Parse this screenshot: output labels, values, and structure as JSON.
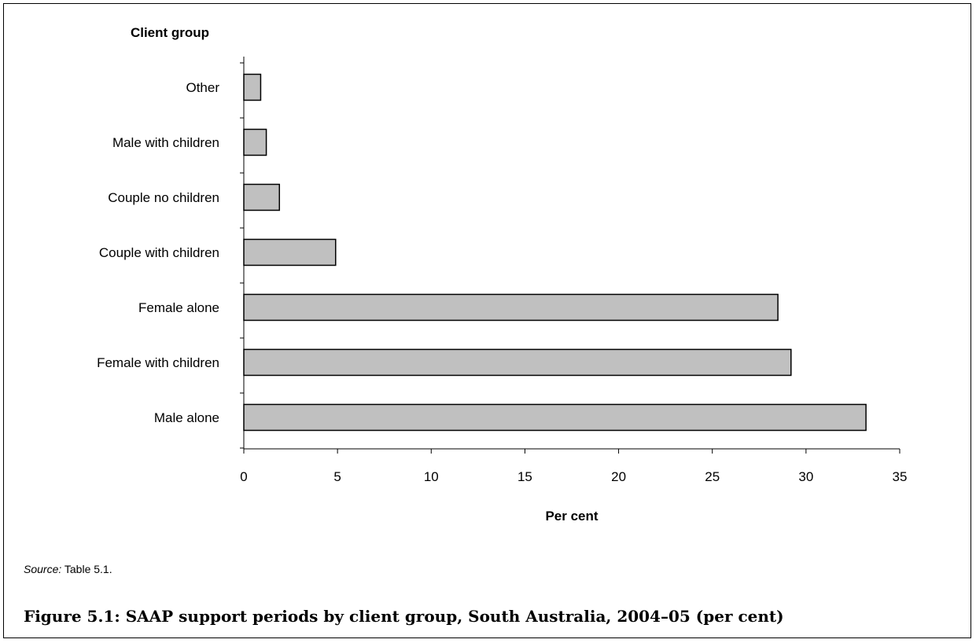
{
  "chart_data": {
    "type": "bar",
    "orientation": "horizontal",
    "ylabel": "Client group",
    "xlabel": "Per cent",
    "categories": [
      "Other",
      "Male with children",
      "Couple no children",
      "Couple with children",
      "Female alone",
      "Female with children",
      "Male alone"
    ],
    "values": [
      0.9,
      1.2,
      1.9,
      4.9,
      28.5,
      29.2,
      33.2
    ],
    "xlim": [
      0,
      35
    ],
    "xticks": [
      0,
      5,
      10,
      15,
      20,
      25,
      30,
      35
    ],
    "grid": false,
    "legend": "none",
    "bar_color": "#c0c0c0",
    "bar_edge_color": "#000000"
  },
  "source": {
    "prefix": "Source:",
    "text": " Table 5.1."
  },
  "caption": "Figure 5.1: SAAP support periods by client group, South Australia, 2004–05 (per cent)"
}
